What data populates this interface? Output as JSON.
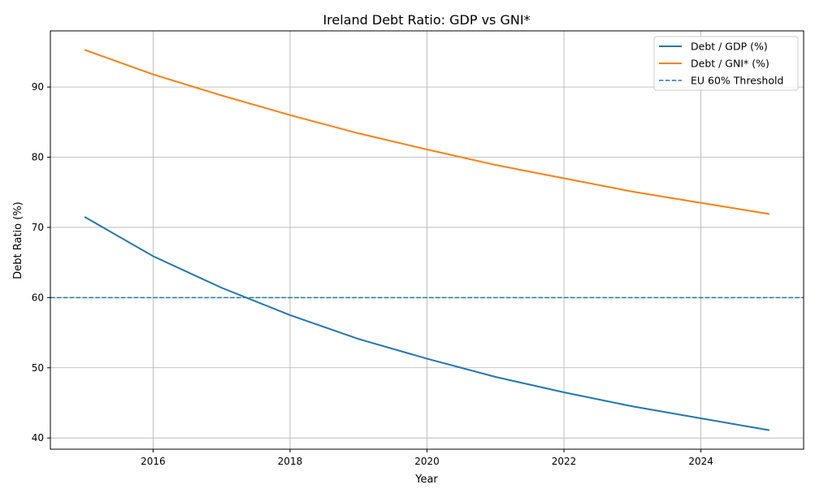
{
  "chart_data": {
    "type": "line",
    "title": "Ireland Debt Ratio: GDP vs GNI*",
    "xlabel": "Year",
    "ylabel": "Debt Ratio (%)",
    "x": [
      2015,
      2016,
      2017,
      2018,
      2019,
      2020,
      2021,
      2022,
      2023,
      2024,
      2025
    ],
    "xlim": [
      2014.5,
      2025.5
    ],
    "ylim": [
      38.4,
      98.0
    ],
    "xticks": [
      2016,
      2018,
      2020,
      2022,
      2024
    ],
    "yticks": [
      40,
      50,
      60,
      70,
      80,
      90
    ],
    "grid": true,
    "legend_position": "top-right",
    "series": [
      {
        "name": "Debt / GDP (%)",
        "color": "#1f77b4",
        "style": "solid",
        "values": [
          71.5,
          65.9,
          61.4,
          57.5,
          54.1,
          51.3,
          48.7,
          46.5,
          44.5,
          42.8,
          41.1
        ]
      },
      {
        "name": "Debt / GNI* (%)",
        "color": "#ff7f0e",
        "style": "solid",
        "values": [
          95.3,
          91.8,
          88.8,
          86.0,
          83.4,
          81.1,
          78.9,
          77.0,
          75.1,
          73.5,
          71.9
        ]
      }
    ],
    "hlines": [
      {
        "name": "EU 60% Threshold",
        "y": 60,
        "color": "#1f77b4",
        "style": "dashed"
      }
    ]
  }
}
